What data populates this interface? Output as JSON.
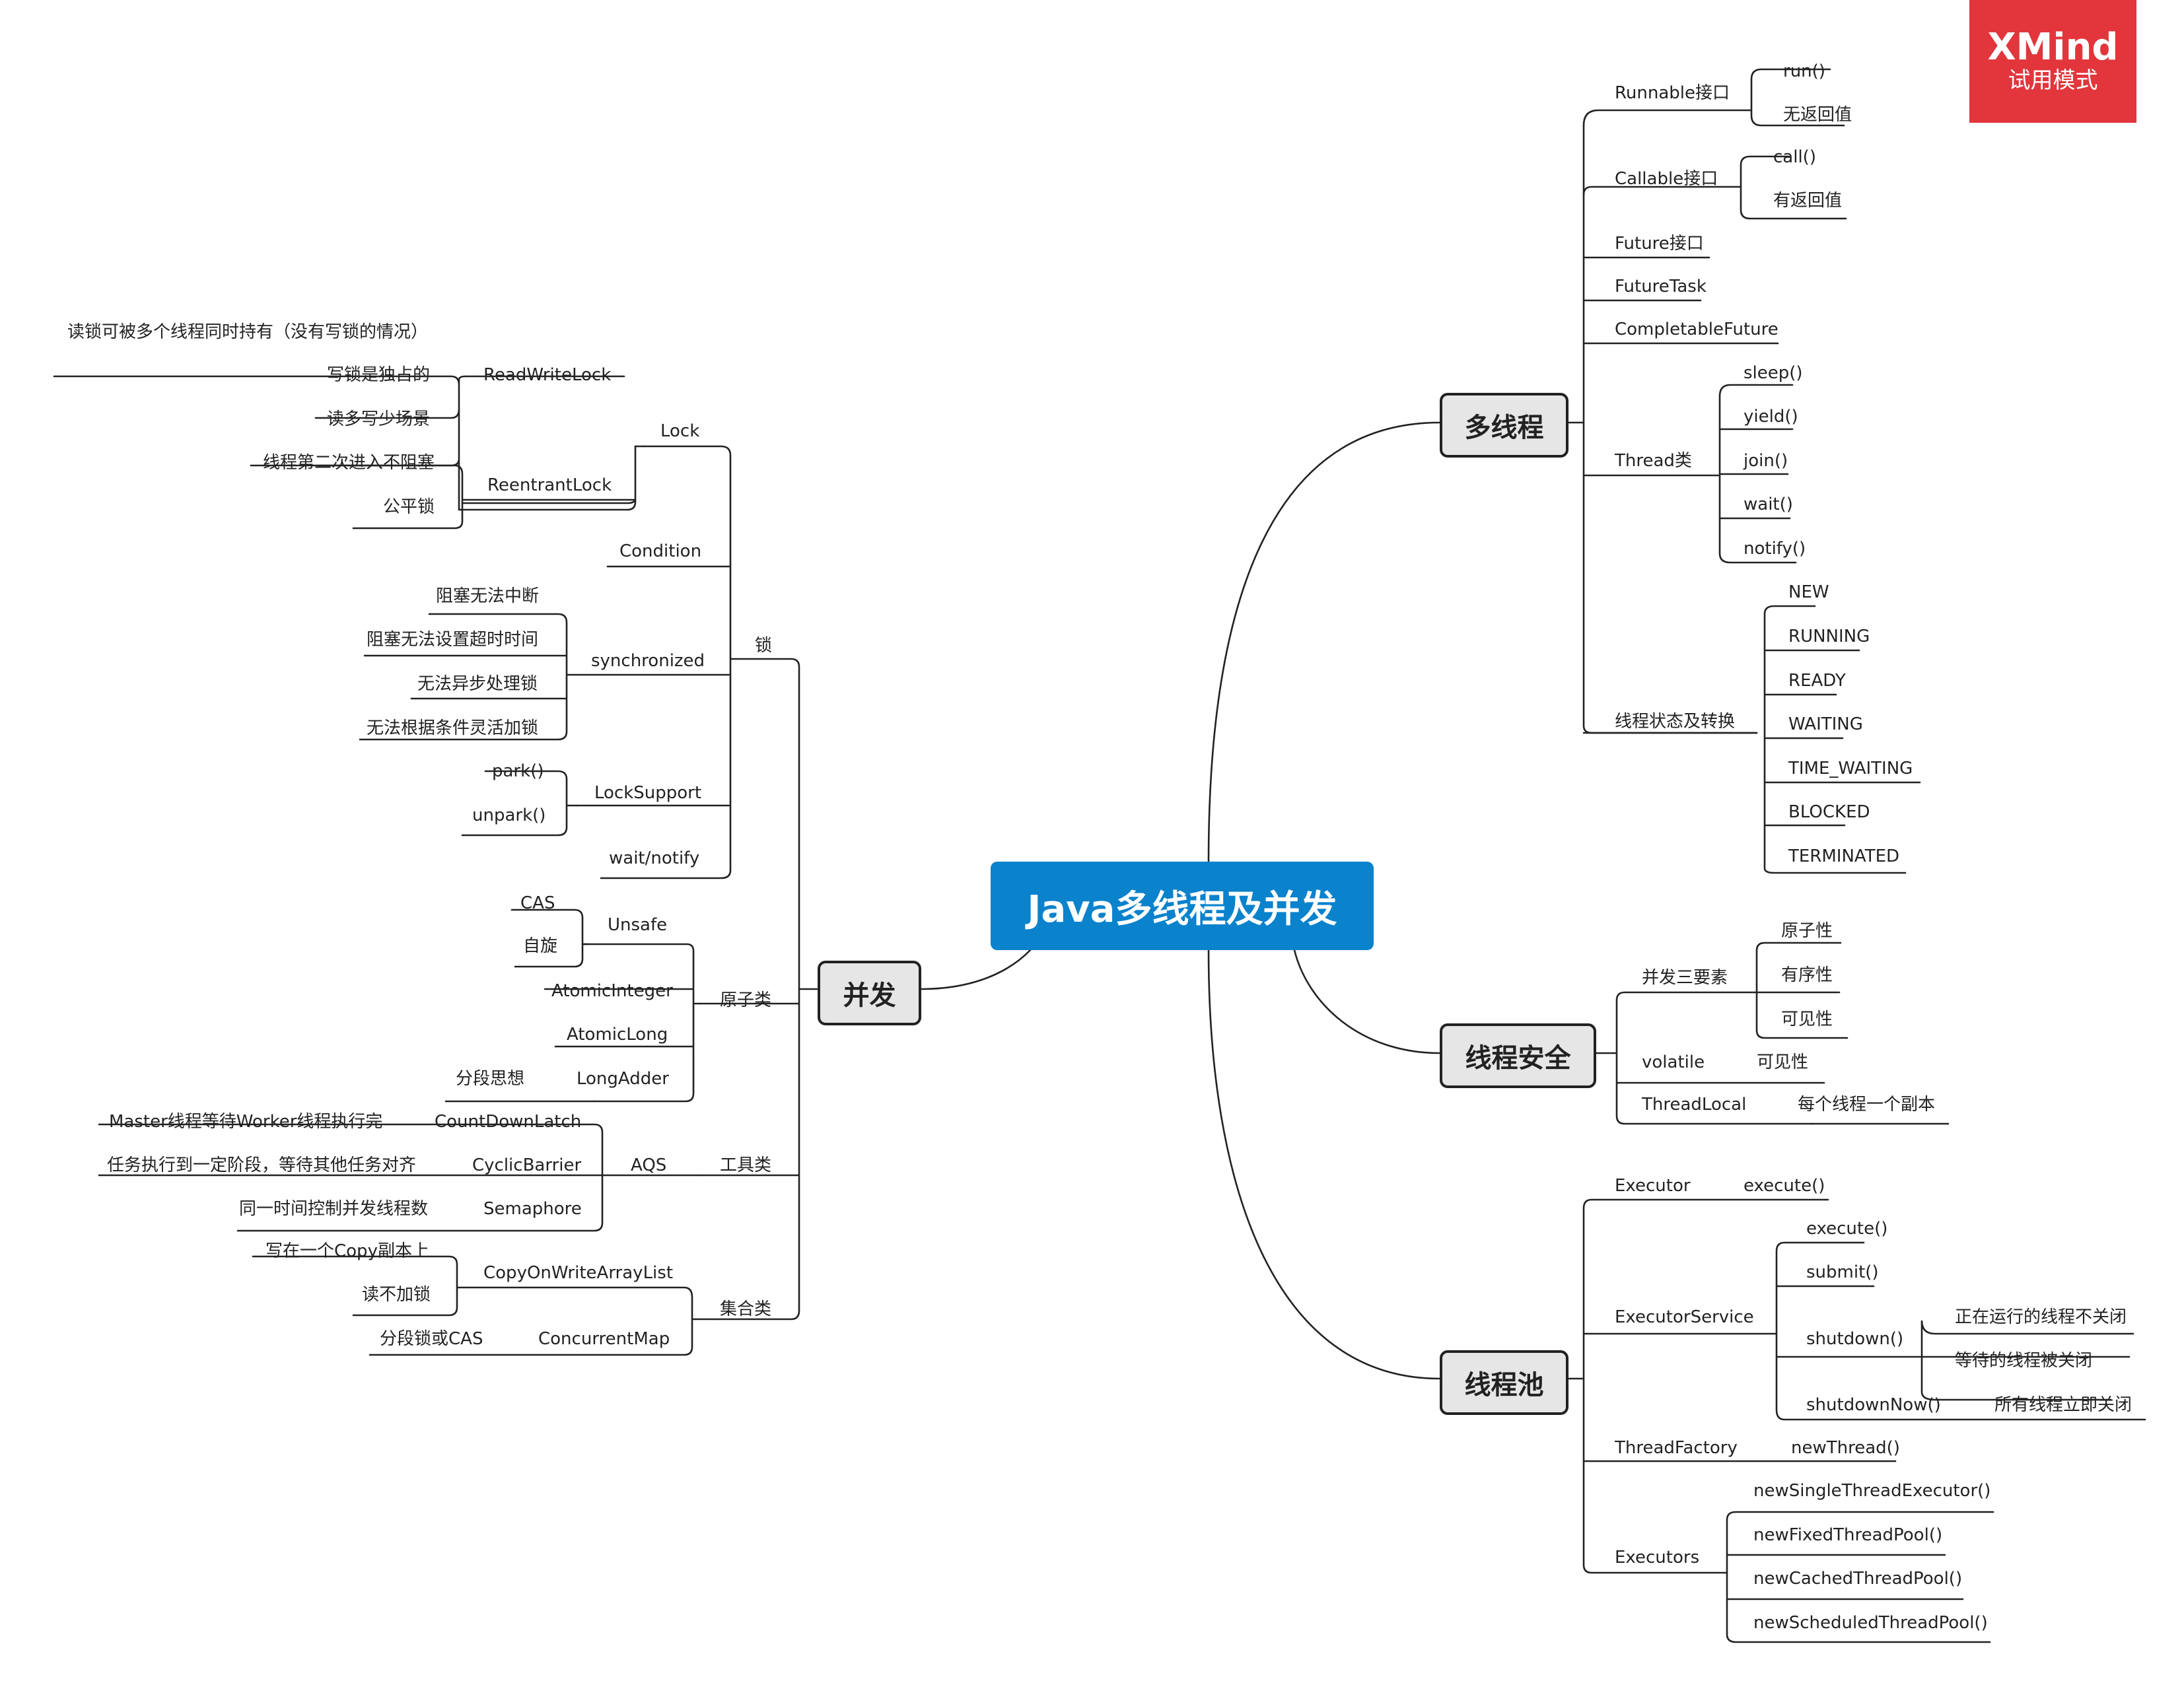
{
  "badge": {
    "brand": "XMind",
    "trial": "试用模式"
  },
  "central": "Java多线程及并发",
  "topics": {
    "multithread": "多线程",
    "safety": "线程安全",
    "pool": "线程池",
    "concurrency": "并发"
  },
  "mt": {
    "runnable": "Runnable接口",
    "run": "run()",
    "noret": "无返回值",
    "callable": "Callable接口",
    "call": "call()",
    "hasret": "有返回值",
    "future": "Future接口",
    "futuretask": "FutureTask",
    "completable": "CompletableFuture",
    "thread": "Thread类",
    "sleep": "sleep()",
    "yield": "yield()",
    "join": "join()",
    "wait": "wait()",
    "notify": "notify()",
    "state": "线程状态及转换",
    "s_new": "NEW",
    "s_running": "RUNNING",
    "s_ready": "READY",
    "s_waiting": "WAITING",
    "s_timewaiting": "TIME_WAITING",
    "s_blocked": "BLOCKED",
    "s_terminated": "TERMINATED"
  },
  "ts": {
    "three": "并发三要素",
    "atomicity": "原子性",
    "ordering": "有序性",
    "visibility": "可见性",
    "volatile": "volatile",
    "volatile_vis": "可见性",
    "threadlocal": "ThreadLocal",
    "tl_desc": "每个线程一个副本"
  },
  "tp": {
    "executor": "Executor",
    "execute1": "execute()",
    "service": "ExecutorService",
    "execute2": "execute()",
    "submit": "submit()",
    "shutdown": "shutdown()",
    "sd1": "正在运行的线程不关闭",
    "sd2": "等待的线程被关闭",
    "shutdownnow": "shutdownNow()",
    "sdn": "所有线程立即关闭",
    "factory": "ThreadFactory",
    "newthread": "newThread()",
    "executors": "Executors",
    "single": "newSingleThreadExecutor()",
    "fixed": "newFixedThreadPool()",
    "cached": "newCachedThreadPool()",
    "scheduled": "newScheduledThreadPool()"
  },
  "cc": {
    "lock_grp": "锁",
    "lock": "Lock",
    "rwlock": "ReadWriteLock",
    "rw1": "读锁可被多个线程同时持有（没有写锁的情况）",
    "rw2": "写锁是独占的",
    "rw3": "读多写少场景",
    "reentrant": "ReentrantLock",
    "re1": "线程第二次进入不阻塞",
    "re2": "公平锁",
    "condition": "Condition",
    "sync": "synchronized",
    "sy1": "阻塞无法中断",
    "sy2": "阻塞无法设置超时时间",
    "sy3": "无法异步处理锁",
    "sy4": "无法根据条件灵活加锁",
    "locksupport": "LockSupport",
    "park": "park()",
    "unpark": "unpark()",
    "waitnotify": "wait/notify",
    "atomic_grp": "原子类",
    "unsafe": "Unsafe",
    "cas": "CAS",
    "spin": "自旋",
    "atomicint": "AtomicInteger",
    "atomiclong": "AtomicLong",
    "longadder": "LongAdder",
    "segment": "分段思想",
    "tool_grp": "工具类",
    "aqs": "AQS",
    "cdl": "CountDownLatch",
    "cdl_d": "Master线程等待Worker线程执行完",
    "cb": "CyclicBarrier",
    "cb_d": "任务执行到一定阶段，等待其他任务对齐",
    "sem": "Semaphore",
    "sem_d": "同一时间控制并发线程数",
    "coll_grp": "集合类",
    "cow": "CopyOnWriteArrayList",
    "cow1": "写在一个Copy副本上",
    "cow2": "读不加锁",
    "cmap": "ConcurrentMap",
    "cmap_d": "分段锁或CAS"
  }
}
